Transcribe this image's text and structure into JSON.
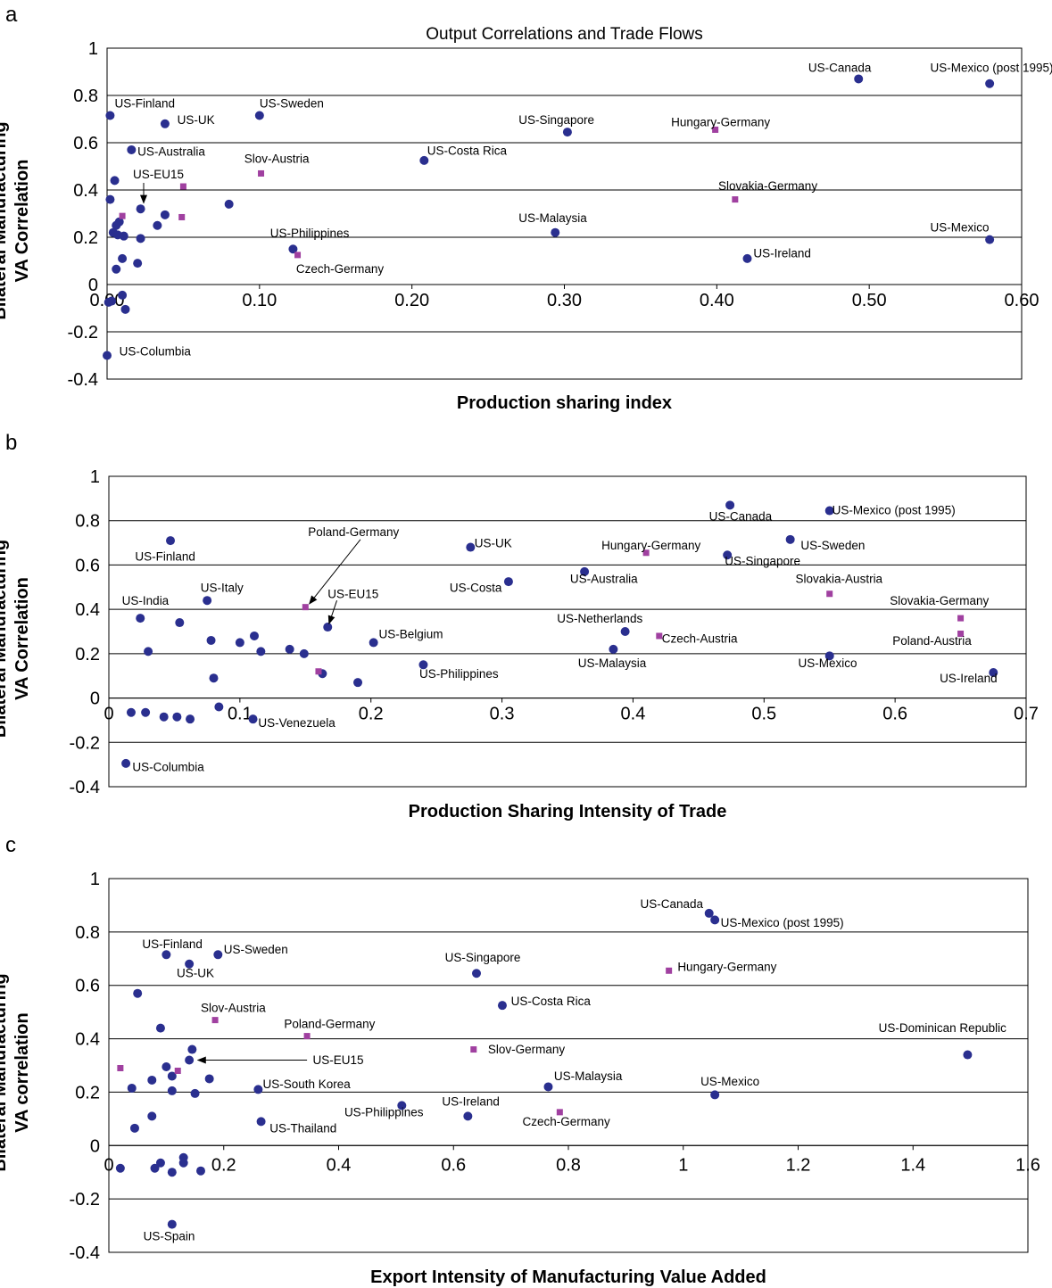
{
  "chart_data": [
    {
      "type": "scatter",
      "panel_label": "a",
      "title": "Output Correlations and Trade Flows",
      "xlabel": "Production sharing index",
      "ylabel": [
        "Bilateral Manufacturing",
        "VA Correlation"
      ],
      "xlim": [
        0,
        0.6
      ],
      "ylim": [
        -0.4,
        1
      ],
      "xticks": [
        "0.00",
        "0.10",
        "0.20",
        "0.30",
        "0.40",
        "0.50",
        "0.60"
      ],
      "yticks": [
        "-0.4",
        "-0.2",
        "0",
        "0.2",
        "0.4",
        "0.6",
        "0.8",
        "1"
      ],
      "grid": "horizontal",
      "series": [
        {
          "marker": "circle",
          "color": "#2a2f8f",
          "points": [
            [
              0.002,
              0.715
            ],
            [
              0.038,
              0.68
            ],
            [
              0.1,
              0.715
            ],
            [
              0.016,
              0.57
            ],
            [
              0.005,
              0.44
            ],
            [
              0.002,
              0.36
            ],
            [
              0.022,
              0.32
            ],
            [
              0.038,
              0.295
            ],
            [
              0.08,
              0.34
            ],
            [
              0.033,
              0.25
            ],
            [
              0.006,
              0.25
            ],
            [
              0.008,
              0.265
            ],
            [
              0.004,
              0.22
            ],
            [
              0.007,
              0.21
            ],
            [
              0.011,
              0.205
            ],
            [
              0.022,
              0.195
            ],
            [
              0.01,
              0.11
            ],
            [
              0.02,
              0.09
            ],
            [
              0.006,
              0.065
            ],
            [
              0.01,
              -0.045
            ],
            [
              0.012,
              -0.105
            ],
            [
              0.003,
              -0.07
            ],
            [
              0.001,
              -0.075
            ],
            [
              0.0,
              -0.3
            ],
            [
              0.208,
              0.525
            ],
            [
              0.302,
              0.645
            ],
            [
              0.294,
              0.22
            ],
            [
              0.122,
              0.15
            ],
            [
              0.42,
              0.11
            ],
            [
              0.493,
              0.87
            ],
            [
              0.579,
              0.85
            ],
            [
              0.579,
              0.19
            ]
          ]
        },
        {
          "marker": "square",
          "color": "#a040a0",
          "points": [
            [
              0.01,
              0.29
            ],
            [
              0.05,
              0.415
            ],
            [
              0.049,
              0.285
            ],
            [
              0.101,
              0.47
            ],
            [
              0.125,
              0.125
            ],
            [
              0.399,
              0.655
            ],
            [
              0.412,
              0.36
            ]
          ]
        }
      ],
      "annotations": [
        {
          "text": "US-Canada",
          "x": 0.46,
          "y": 0.9
        },
        {
          "text": "US-Mexico (post 1995)",
          "x": 0.54,
          "y": 0.9
        },
        {
          "text": "US-Finland",
          "x": 0.005,
          "y": 0.75
        },
        {
          "text": "US-UK",
          "x": 0.046,
          "y": 0.68
        },
        {
          "text": "US-Sweden",
          "x": 0.1,
          "y": 0.75
        },
        {
          "text": "US-Singapore",
          "x": 0.27,
          "y": 0.68
        },
        {
          "text": "Hungary-Germany",
          "x": 0.37,
          "y": 0.67
        },
        {
          "text": "US-Australia",
          "x": 0.02,
          "y": 0.545
        },
        {
          "text": "US-Costa Rica",
          "x": 0.21,
          "y": 0.55
        },
        {
          "text": "Slov-Austria",
          "x": 0.09,
          "y": 0.515
        },
        {
          "text": "US-EU15",
          "x": 0.017,
          "y": 0.45
        },
        {
          "text": "Slovakia-Germany",
          "x": 0.401,
          "y": 0.4
        },
        {
          "text": "US-Malaysia",
          "x": 0.27,
          "y": 0.265
        },
        {
          "text": "US-Mexico",
          "x": 0.54,
          "y": 0.225
        },
        {
          "text": "US-Philippines",
          "x": 0.107,
          "y": 0.2
        },
        {
          "text": "US-Ireland",
          "x": 0.424,
          "y": 0.115
        },
        {
          "text": "Czech-Germany",
          "x": 0.124,
          "y": 0.05
        },
        {
          "text": "US-Columbia",
          "x": 0.008,
          "y": -0.3
        }
      ]
    },
    {
      "type": "scatter",
      "panel_label": "b",
      "xlabel": "Production Sharing Intensity of Trade",
      "ylabel": [
        "Bilateral Manufacturing",
        "VA Correlation"
      ],
      "xlim": [
        0,
        0.7
      ],
      "ylim": [
        -0.4,
        1
      ],
      "xticks": [
        "0",
        "0.1",
        "0.2",
        "0.3",
        "0.4",
        "0.5",
        "0.6",
        "0.7"
      ],
      "yticks": [
        "-0.4",
        "-0.2",
        "0",
        "0.2",
        "0.4",
        "0.6",
        "0.8",
        "1"
      ],
      "grid": "horizontal",
      "series": [
        {
          "marker": "circle",
          "color": "#2a2f8f",
          "points": [
            [
              0.047,
              0.71
            ],
            [
              0.024,
              0.36
            ],
            [
              0.054,
              0.34
            ],
            [
              0.075,
              0.44
            ],
            [
              0.03,
              0.21
            ],
            [
              0.078,
              0.26
            ],
            [
              0.1,
              0.25
            ],
            [
              0.111,
              0.28
            ],
            [
              0.116,
              0.21
            ],
            [
              0.138,
              0.22
            ],
            [
              0.149,
              0.2
            ],
            [
              0.163,
              0.11
            ],
            [
              0.08,
              0.09
            ],
            [
              0.167,
              0.32
            ],
            [
              0.202,
              0.25
            ],
            [
              0.19,
              0.07
            ],
            [
              0.24,
              0.15
            ],
            [
              0.276,
              0.68
            ],
            [
              0.305,
              0.525
            ],
            [
              0.363,
              0.57
            ],
            [
              0.394,
              0.3
            ],
            [
              0.385,
              0.22
            ],
            [
              0.474,
              0.87
            ],
            [
              0.472,
              0.645
            ],
            [
              0.52,
              0.715
            ],
            [
              0.55,
              0.845
            ],
            [
              0.55,
              0.19
            ],
            [
              0.675,
              0.115
            ],
            [
              0.017,
              -0.065
            ],
            [
              0.028,
              -0.065
            ],
            [
              0.042,
              -0.085
            ],
            [
              0.052,
              -0.085
            ],
            [
              0.062,
              -0.095
            ],
            [
              0.084,
              -0.04
            ],
            [
              0.11,
              -0.095
            ],
            [
              0.013,
              -0.295
            ]
          ]
        },
        {
          "marker": "square",
          "color": "#a040a0",
          "points": [
            [
              0.15,
              0.41
            ],
            [
              0.16,
              0.12
            ],
            [
              0.41,
              0.655
            ],
            [
              0.42,
              0.28
            ],
            [
              0.55,
              0.47
            ],
            [
              0.65,
              0.36
            ],
            [
              0.65,
              0.29
            ]
          ]
        }
      ],
      "annotations": [
        {
          "text": "US-Canada",
          "x": 0.458,
          "y": 0.8
        },
        {
          "text": "US-Mexico (post 1995)",
          "x": 0.552,
          "y": 0.83
        },
        {
          "text": "Poland-Germany",
          "x": 0.152,
          "y": 0.73
        },
        {
          "text": "US-Finland",
          "x": 0.02,
          "y": 0.62
        },
        {
          "text": "US-UK",
          "x": 0.279,
          "y": 0.68
        },
        {
          "text": "Hungary-Germany",
          "x": 0.376,
          "y": 0.67
        },
        {
          "text": "US-Sweden",
          "x": 0.528,
          "y": 0.67
        },
        {
          "text": "US-Singapore",
          "x": 0.47,
          "y": 0.6
        },
        {
          "text": "US-Australia",
          "x": 0.352,
          "y": 0.52
        },
        {
          "text": "Slovakia-Austria",
          "x": 0.524,
          "y": 0.52
        },
        {
          "text": "US-Costa",
          "x": 0.26,
          "y": 0.48
        },
        {
          "text": "US-Italy",
          "x": 0.07,
          "y": 0.48
        },
        {
          "text": "US-EU15",
          "x": 0.167,
          "y": 0.45
        },
        {
          "text": "US-India",
          "x": 0.01,
          "y": 0.42
        },
        {
          "text": "Slovakia-Germany",
          "x": 0.596,
          "y": 0.42
        },
        {
          "text": "US-Netherlands",
          "x": 0.342,
          "y": 0.34
        },
        {
          "text": "US-Belgium",
          "x": 0.206,
          "y": 0.27
        },
        {
          "text": "Czech-Austria",
          "x": 0.422,
          "y": 0.25
        },
        {
          "text": "Poland-Austria",
          "x": 0.598,
          "y": 0.24
        },
        {
          "text": "US-Malaysia",
          "x": 0.358,
          "y": 0.14
        },
        {
          "text": "US-Mexico",
          "x": 0.526,
          "y": 0.14
        },
        {
          "text": "US-Philippines",
          "x": 0.237,
          "y": 0.09
        },
        {
          "text": "US-Ireland",
          "x": 0.634,
          "y": 0.07
        },
        {
          "text": "US-Venezuela",
          "x": 0.114,
          "y": -0.13
        },
        {
          "text": "US-Columbia",
          "x": 0.018,
          "y": -0.33
        }
      ]
    },
    {
      "type": "scatter",
      "panel_label": "c",
      "xlabel": "Export Intensity of Manufacturing Value Added",
      "ylabel": [
        "Bilateral Manufacturing",
        "VA correlation"
      ],
      "xlim": [
        0,
        1.6
      ],
      "ylim": [
        -0.4,
        1
      ],
      "xticks": [
        "0",
        "0.2",
        "0.4",
        "0.6",
        "0.8",
        "1",
        "1.2",
        "1.4",
        "1.6"
      ],
      "yticks": [
        "-0.4",
        "-0.2",
        "0",
        "0.2",
        "0.4",
        "0.6",
        "0.8",
        "1"
      ],
      "grid": "horizontal",
      "series": [
        {
          "marker": "circle",
          "color": "#2a2f8f",
          "points": [
            [
              0.1,
              0.715
            ],
            [
              0.14,
              0.68
            ],
            [
              0.19,
              0.715
            ],
            [
              0.05,
              0.57
            ],
            [
              0.09,
              0.44
            ],
            [
              0.145,
              0.36
            ],
            [
              0.14,
              0.32
            ],
            [
              0.1,
              0.295
            ],
            [
              0.11,
              0.26
            ],
            [
              0.075,
              0.245
            ],
            [
              0.175,
              0.25
            ],
            [
              0.04,
              0.215
            ],
            [
              0.11,
              0.205
            ],
            [
              0.15,
              0.195
            ],
            [
              0.26,
              0.21
            ],
            [
              0.075,
              0.11
            ],
            [
              0.045,
              0.065
            ],
            [
              0.265,
              0.09
            ],
            [
              0.51,
              0.15
            ],
            [
              0.625,
              0.11
            ],
            [
              0.64,
              0.645
            ],
            [
              0.685,
              0.525
            ],
            [
              0.765,
              0.22
            ],
            [
              1.045,
              0.87
            ],
            [
              1.055,
              0.845
            ],
            [
              1.055,
              0.19
            ],
            [
              1.495,
              0.34
            ],
            [
              0.02,
              -0.085
            ],
            [
              0.08,
              -0.085
            ],
            [
              0.09,
              -0.065
            ],
            [
              0.11,
              -0.1
            ],
            [
              0.13,
              -0.065
            ],
            [
              0.13,
              -0.045
            ],
            [
              0.16,
              -0.095
            ],
            [
              0.11,
              -0.295
            ]
          ]
        },
        {
          "marker": "square",
          "color": "#a040a0",
          "points": [
            [
              0.02,
              0.29
            ],
            [
              0.12,
              0.28
            ],
            [
              0.185,
              0.47
            ],
            [
              0.345,
              0.41
            ],
            [
              0.635,
              0.36
            ],
            [
              0.785,
              0.125
            ],
            [
              0.975,
              0.655
            ]
          ]
        }
      ],
      "annotations": [
        {
          "text": "US-Canada",
          "x": 0.925,
          "y": 0.89
        },
        {
          "text": "US-Mexico (post 1995)",
          "x": 1.065,
          "y": 0.82
        },
        {
          "text": "US-Finland",
          "x": 0.058,
          "y": 0.74
        },
        {
          "text": "US-Sweden",
          "x": 0.2,
          "y": 0.72
        },
        {
          "text": "US-UK",
          "x": 0.118,
          "y": 0.63
        },
        {
          "text": "US-Singapore",
          "x": 0.585,
          "y": 0.69
        },
        {
          "text": "Hungary-Germany",
          "x": 0.99,
          "y": 0.655
        },
        {
          "text": "US-Costa Rica",
          "x": 0.7,
          "y": 0.525
        },
        {
          "text": "Slov-Austria",
          "x": 0.16,
          "y": 0.5
        },
        {
          "text": "Poland-Germany",
          "x": 0.305,
          "y": 0.44
        },
        {
          "text": "US-Dominican Republic",
          "x": 1.34,
          "y": 0.425
        },
        {
          "text": "Slov-Germany",
          "x": 0.66,
          "y": 0.345
        },
        {
          "text": "US-EU15",
          "x": 0.355,
          "y": 0.305
        },
        {
          "text": "US-Malaysia",
          "x": 0.775,
          "y": 0.245
        },
        {
          "text": "US-Mexico",
          "x": 1.03,
          "y": 0.225
        },
        {
          "text": "US-South Korea",
          "x": 0.268,
          "y": 0.215
        },
        {
          "text": "US-Ireland",
          "x": 0.58,
          "y": 0.15
        },
        {
          "text": "US-Philippines",
          "x": 0.41,
          "y": 0.11
        },
        {
          "text": "Czech-Germany",
          "x": 0.72,
          "y": 0.075
        },
        {
          "text": "US-Thailand",
          "x": 0.28,
          "y": 0.05
        },
        {
          "text": "US-Spain",
          "x": 0.06,
          "y": -0.355
        }
      ]
    }
  ]
}
